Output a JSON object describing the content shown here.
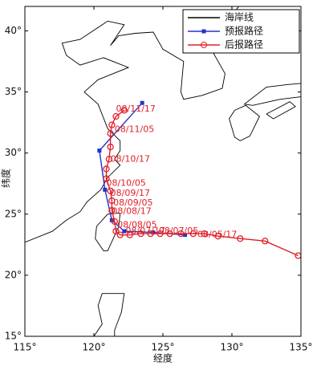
{
  "chart_data": {
    "type": "line",
    "xlabel": "经度",
    "ylabel": "纬度",
    "xlim": [
      115,
      135
    ],
    "ylim": [
      15,
      42
    ],
    "xticks": [
      {
        "value": 115,
        "label": "115°"
      },
      {
        "value": 120,
        "label": "120°"
      },
      {
        "value": 125,
        "label": "125°"
      },
      {
        "value": 130,
        "label": "130°"
      },
      {
        "value": 135,
        "label": "135°"
      }
    ],
    "yticks": [
      {
        "value": 15,
        "label": "15°"
      },
      {
        "value": 20,
        "label": "20°"
      },
      {
        "value": 25,
        "label": "25°"
      },
      {
        "value": 30,
        "label": "30°"
      },
      {
        "value": 35,
        "label": "35°"
      },
      {
        "value": 40,
        "label": "40°"
      }
    ],
    "legend": "upper right",
    "series": [
      {
        "name": "海岸线",
        "color": "#000000",
        "marker": "none",
        "x": [
          115,
          117,
          118,
          119,
          119.5,
          120.5,
          121,
          121.9,
          121.5,
          121.9,
          121.9,
          121,
          120.3,
          119.3,
          120.3,
          122.5,
          120.7,
          119,
          118,
          117.7,
          119,
          121,
          122.2,
          121.2,
          121.8,
          123,
          124.3,
          125,
          126.5,
          126.3,
          126.5,
          127.8,
          129.3,
          129.5,
          128.5,
          127.5,
          129.8,
          130.5,
          null,
          121.9,
          121.8,
          121,
          120.7,
          120.1,
          120.2,
          121,
          121.9,
          null,
          130.2,
          131,
          132,
          131.3,
          130.6,
          130.2,
          129.8,
          130.2,
          null,
          132.5,
          134.2,
          134.6,
          133,
          132.5,
          null,
          135,
          134,
          132.5,
          130.9,
          131.5,
          133.5,
          135,
          null,
          120.6,
          122.2,
          122,
          121.5,
          121.5,
          null,
          120,
          120.6,
          120.3,
          120.6
        ],
        "values": [
          22.7,
          23.6,
          24.5,
          25.2,
          26,
          27,
          28,
          29,
          29.5,
          30.2,
          31,
          32,
          34,
          35,
          36,
          37,
          37.8,
          37.2,
          38,
          39,
          39.3,
          40.8,
          40.5,
          38.8,
          39.6,
          39.8,
          39.9,
          38.5,
          37.5,
          35,
          34.4,
          34.7,
          35.3,
          36.5,
          38.5,
          39.7,
          41,
          42,
          null,
          25.1,
          24,
          22,
          22,
          23,
          24,
          25,
          25.1,
          null,
          33.5,
          33.9,
          33,
          31.4,
          31,
          31.3,
          32.8,
          33.5,
          null,
          33.2,
          34.2,
          33.8,
          32.8,
          33.2,
          null,
          35.7,
          35.6,
          35.4,
          34,
          33.9,
          34.4,
          34.6,
          null,
          18.5,
          18.5,
          17,
          15.5,
          15,
          null,
          15,
          16,
          17.5,
          18.5
        ]
      },
      {
        "name": "预报路径",
        "color": "#2233cc",
        "marker": "square",
        "x": [
          126.6,
          124.3,
          122.2,
          121.3,
          120.8,
          120.4,
          123.5
        ],
        "values": [
          23.3,
          23.5,
          23.6,
          24.5,
          27,
          30.2,
          34.1
        ]
      },
      {
        "name": "后报路径",
        "color": "#e0202a",
        "marker": "circle",
        "x": [
          134.8,
          132.4,
          130.6,
          129,
          128,
          127.2,
          126.3,
          125.5,
          124.8,
          124.1,
          123.4,
          122.6,
          121.9,
          121.6,
          121.5,
          121.3,
          121.3,
          121.2,
          120.9,
          120.9,
          121.1,
          121.2,
          121.2,
          121.3,
          121.6,
          122.2
        ],
        "values": [
          21.6,
          22.8,
          23,
          23.2,
          23.4,
          23.4,
          23.4,
          23.4,
          23.4,
          23.4,
          23.4,
          23.3,
          23.3,
          23.6,
          24.4,
          25.3,
          26.1,
          26.9,
          27.9,
          28.7,
          29.5,
          30.5,
          31.6,
          32.3,
          33,
          33.5
        ]
      }
    ],
    "annotations": [
      {
        "text": "08/11/17",
        "x": 121.6,
        "y": 33.6
      },
      {
        "text": "08/11/05",
        "x": 121.5,
        "y": 31.9
      },
      {
        "text": "08/10/17",
        "x": 121.2,
        "y": 29.5
      },
      {
        "text": "08/10/05",
        "x": 120.9,
        "y": 27.5
      },
      {
        "text": "08/09/17",
        "x": 121.2,
        "y": 26.7
      },
      {
        "text": "08/09/05",
        "x": 121.4,
        "y": 25.9
      },
      {
        "text": "08/08/17",
        "x": 121.3,
        "y": 25.2
      },
      {
        "text": "08/08/05",
        "x": 121.7,
        "y": 24.1
      },
      {
        "text": "08/07/17",
        "x": 122.3,
        "y": 23.6
      },
      {
        "text": "08/07/05",
        "x": 124.7,
        "y": 23.6
      },
      {
        "text": "08/05/17",
        "x": 127.5,
        "y": 23.3
      }
    ]
  }
}
